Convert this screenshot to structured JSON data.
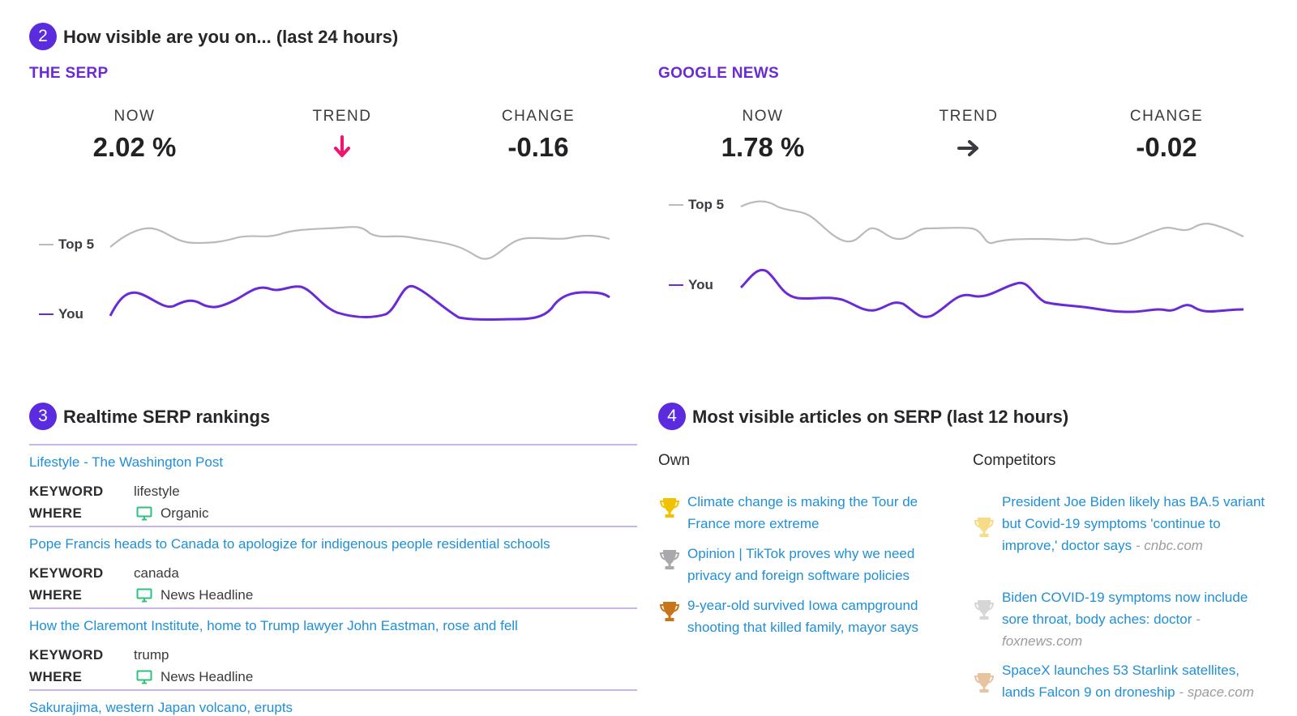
{
  "visibility": {
    "badge": "2",
    "title": "How visible are you on... (last 24 hours)",
    "panels": [
      {
        "title": "THE SERP",
        "now_label": "NOW",
        "now_value": "2.02 %",
        "trend_label": "TREND",
        "trend_icon": "arrow-down",
        "trend_color": "#f0146e",
        "change_label": "CHANGE",
        "change_value": "-0.16",
        "legend_top": "Top 5",
        "legend_you": "You"
      },
      {
        "title": "GOOGLE NEWS",
        "now_label": "NOW",
        "now_value": "1.78 %",
        "trend_label": "TREND",
        "trend_icon": "arrow-right",
        "trend_color": "#3a3a40",
        "change_label": "CHANGE",
        "change_value": "-0.02",
        "legend_top": "Top 5",
        "legend_you": "You"
      }
    ],
    "colors": {
      "top5_line": "#b9b9c0",
      "you_line": "#6a2bd6"
    }
  },
  "rankings": {
    "badge": "3",
    "title": "Realtime SERP rankings",
    "keyword_label": "KEYWORD",
    "where_label": "WHERE",
    "items": [
      {
        "title": "Lifestyle - The Washington Post",
        "keyword": "lifestyle",
        "where": "Organic"
      },
      {
        "title": "Pope Francis heads to Canada to apologize for indigenous people residential schools",
        "keyword": "canada",
        "where": "News Headline"
      },
      {
        "title": "How the Claremont Institute, home to Trump lawyer John Eastman, rose and fell",
        "keyword": "trump",
        "where": "News Headline"
      },
      {
        "title": "Sakurajima, western Japan volcano, erupts"
      }
    ]
  },
  "articles": {
    "badge": "4",
    "title": "Most visible articles on SERP (last 12 hours)",
    "own_label": "Own",
    "competitors_label": "Competitors",
    "own": [
      {
        "title": "Climate change is making the Tour de France more extreme",
        "trophy": "gold"
      },
      {
        "title": "Opinion | TikTok proves why we need privacy and foreign software policies",
        "trophy": "silver"
      },
      {
        "title": "9-year-old survived Iowa campground shooting that killed family, mayor says",
        "trophy": "bronze"
      }
    ],
    "competitors": [
      {
        "title": "President Joe Biden likely has BA.5 variant but Covid-19 symptoms 'continue to improve,' doctor says",
        "source": "- cnbc.com",
        "trophy": "gold-faded"
      },
      {
        "title": "Biden COVID-19 symptoms now include sore throat, body aches: doctor",
        "source": "- foxnews.com",
        "trophy": "silver-faded"
      },
      {
        "title": "SpaceX launches 53 Starlink satellites, lands Falcon 9 on droneship",
        "source": "- space.com",
        "trophy": "bronze-faded"
      }
    ],
    "trophy_colors": {
      "gold": "#f2c200",
      "silver": "#a9a9ad",
      "bronze": "#c8741a",
      "gold-faded": "#f6dc86",
      "silver-faded": "#d6d6d9",
      "bronze-faded": "#e8c3a0"
    }
  }
}
